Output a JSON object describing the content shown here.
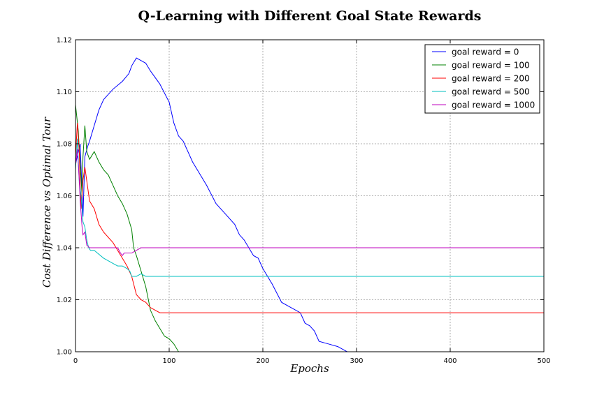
{
  "chart_data": {
    "type": "line",
    "title": "Q-Learning with Different Goal State Rewards",
    "xlabel": "Epochs",
    "ylabel": "Cost Difference vs Optimal Tour",
    "xlim": [
      0,
      500
    ],
    "ylim": [
      1.0,
      1.12
    ],
    "xticks": [
      0,
      100,
      200,
      300,
      400,
      500
    ],
    "yticks": [
      1.0,
      1.02,
      1.04,
      1.06,
      1.08,
      1.1,
      1.12
    ],
    "ytick_labels": [
      "1.00",
      "1.02",
      "1.04",
      "1.06",
      "1.08",
      "1.10",
      "1.12"
    ],
    "grid": true,
    "legend_position": "top-right",
    "series": [
      {
        "name": "goal reward = 0",
        "color": "#0000ff",
        "x": [
          0,
          5,
          8,
          10,
          13,
          15,
          20,
          25,
          30,
          40,
          50,
          57,
          60,
          65,
          70,
          75,
          80,
          90,
          100,
          105,
          110,
          115,
          120,
          125,
          130,
          140,
          150,
          160,
          170,
          175,
          180,
          185,
          190,
          195,
          200,
          210,
          220,
          230,
          240,
          245,
          250,
          255,
          260,
          270,
          280,
          285,
          290,
          300,
          500
        ],
        "y": [
          1.072,
          1.08,
          1.052,
          1.075,
          1.079,
          1.081,
          1.087,
          1.093,
          1.097,
          1.101,
          1.104,
          1.107,
          1.11,
          1.113,
          1.112,
          1.111,
          1.108,
          1.103,
          1.096,
          1.088,
          1.083,
          1.081,
          1.077,
          1.073,
          1.07,
          1.064,
          1.057,
          1.053,
          1.049,
          1.045,
          1.043,
          1.04,
          1.037,
          1.036,
          1.032,
          1.026,
          1.019,
          1.017,
          1.015,
          1.011,
          1.01,
          1.008,
          1.004,
          1.003,
          1.002,
          1.001,
          1.0,
          1.0,
          1.0
        ]
      },
      {
        "name": "goal reward = 100",
        "color": "#008000",
        "x": [
          0,
          3,
          5,
          7,
          8,
          10,
          12,
          15,
          20,
          25,
          30,
          35,
          40,
          45,
          50,
          55,
          60,
          62,
          65,
          70,
          75,
          80,
          85,
          90,
          95,
          100,
          105,
          110,
          500
        ],
        "y": [
          1.095,
          1.085,
          1.072,
          1.06,
          1.075,
          1.087,
          1.077,
          1.074,
          1.077,
          1.073,
          1.07,
          1.068,
          1.064,
          1.06,
          1.057,
          1.053,
          1.047,
          1.04,
          1.037,
          1.031,
          1.025,
          1.016,
          1.012,
          1.009,
          1.006,
          1.005,
          1.003,
          1.0,
          1.0
        ]
      },
      {
        "name": "goal reward = 200",
        "color": "#ff0000",
        "x": [
          0,
          2,
          4,
          5,
          6,
          8,
          10,
          15,
          20,
          25,
          30,
          40,
          50,
          55,
          60,
          65,
          70,
          75,
          80,
          85,
          90,
          100,
          500
        ],
        "y": [
          1.075,
          1.088,
          1.077,
          1.064,
          1.055,
          1.066,
          1.071,
          1.058,
          1.055,
          1.049,
          1.046,
          1.042,
          1.036,
          1.033,
          1.029,
          1.022,
          1.02,
          1.019,
          1.017,
          1.016,
          1.015,
          1.015,
          1.015
        ]
      },
      {
        "name": "goal reward = 500",
        "color": "#00bfbf",
        "x": [
          0,
          2,
          4,
          6,
          8,
          10,
          12,
          14,
          16,
          20,
          30,
          40,
          45,
          50,
          55,
          58,
          60,
          65,
          70,
          75,
          500
        ],
        "y": [
          1.07,
          1.082,
          1.065,
          1.06,
          1.05,
          1.048,
          1.043,
          1.04,
          1.039,
          1.039,
          1.036,
          1.034,
          1.033,
          1.033,
          1.032,
          1.031,
          1.029,
          1.029,
          1.03,
          1.029,
          1.029
        ]
      },
      {
        "name": "goal reward = 1000",
        "color": "#bf00bf",
        "x": [
          0,
          2,
          4,
          5,
          7,
          8,
          10,
          12,
          15,
          20,
          30,
          45,
          48,
          50,
          52,
          55,
          60,
          65,
          70,
          500
        ],
        "y": [
          1.072,
          1.078,
          1.066,
          1.058,
          1.048,
          1.045,
          1.046,
          1.041,
          1.04,
          1.04,
          1.04,
          1.04,
          1.038,
          1.037,
          1.038,
          1.038,
          1.038,
          1.039,
          1.04,
          1.04
        ]
      }
    ]
  }
}
